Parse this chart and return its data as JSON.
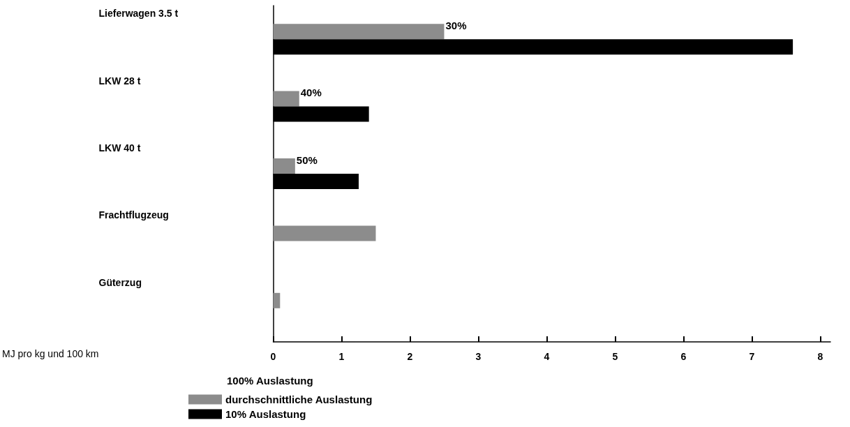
{
  "chart_data": {
    "type": "bar",
    "orientation": "horizontal",
    "xlabel": "MJ pro kg und 100 km",
    "legend_title": "100% Auslastung",
    "legend": "bottom",
    "categories": [
      "Lieferwagen 3.5 t",
      "LKW 28 t",
      "LKW 40 t",
      "Frachtflugzeug",
      "Güterzug"
    ],
    "series": [
      {
        "name": "durchschnittliche Auslastung",
        "color": "#8c8c8c",
        "values": [
          2.5,
          0.38,
          0.32,
          1.5,
          0.1
        ]
      },
      {
        "name": "10% Auslastung",
        "color": "#000000",
        "values": [
          7.6,
          1.4,
          1.25,
          null,
          null
        ]
      }
    ],
    "annotations": [
      {
        "text": "30%",
        "x": 2.5,
        "y": "Lieferwagen 3.5 t"
      },
      {
        "text": "40%",
        "x": 0.38,
        "y": "LKW 28 t"
      },
      {
        "text": "50%",
        "x": 0.32,
        "y": "LKW 40 t"
      }
    ],
    "xlim": [
      0,
      8.15
    ],
    "xticks": [
      0,
      1,
      2,
      3,
      4,
      5,
      6,
      7,
      8
    ],
    "grid": false
  }
}
